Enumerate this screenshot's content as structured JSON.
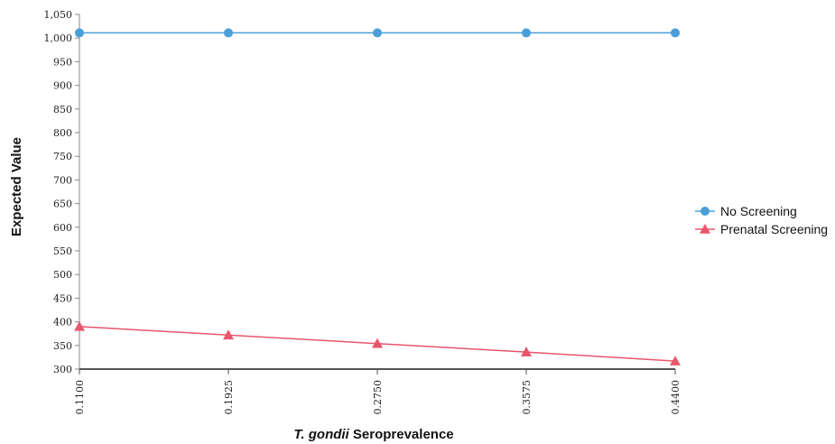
{
  "chart_data": {
    "type": "line",
    "title": "",
    "xlabel_italic": "T. gondii",
    "xlabel_rest": " Seroprevalence",
    "ylabel": "Expected Value",
    "x": [
      "0.1100",
      "0.1925",
      "0.2750",
      "0.3575",
      "0.4400"
    ],
    "x_values": [
      0.11,
      0.1925,
      0.275,
      0.3575,
      0.44
    ],
    "ylim": [
      300,
      1050
    ],
    "yticks": [
      300,
      350,
      400,
      450,
      500,
      550,
      600,
      650,
      700,
      750,
      800,
      850,
      900,
      950,
      1000,
      1050
    ],
    "ytick_labels": [
      "300",
      "350",
      "400",
      "450",
      "500",
      "550",
      "600",
      "650",
      "700",
      "750",
      "800",
      "850",
      "900",
      "950",
      "1,000",
      "1,050"
    ],
    "legend_position": "right",
    "grid": false,
    "series": [
      {
        "name": "No Screening",
        "marker": "circle",
        "color": "#4a9fd8",
        "values": [
          1011,
          1011,
          1011,
          1011,
          1011
        ]
      },
      {
        "name": "Prenatal Screening",
        "marker": "triangle",
        "color": "#e8566c",
        "values": [
          390,
          372,
          354,
          336,
          317
        ]
      }
    ]
  }
}
